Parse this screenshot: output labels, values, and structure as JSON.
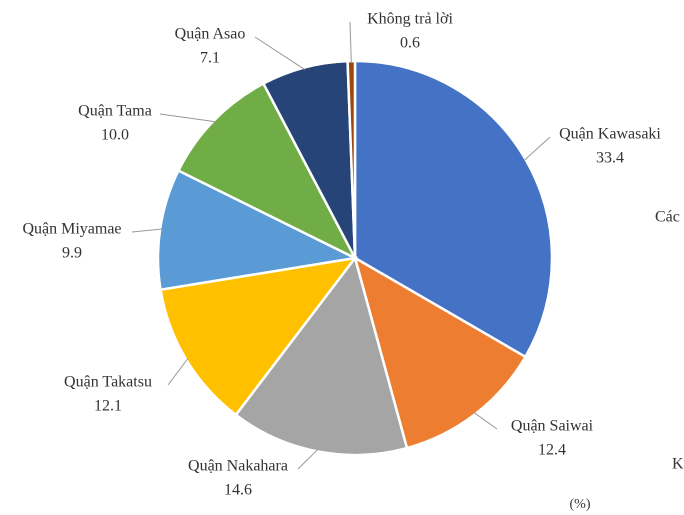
{
  "chart_data": {
    "type": "pie",
    "categories": [
      "Quận Kawasaki",
      "Quận Saiwai",
      "Quận Nakahara",
      "Quận Takatsu",
      "Quận Miyamae",
      "Quận Tama",
      "Quận Asao",
      "Không trả lời"
    ],
    "values": [
      33.4,
      12.4,
      14.6,
      12.1,
      9.9,
      10.0,
      7.1,
      0.6
    ],
    "value_labels": [
      "33.4",
      "12.4",
      "14.6",
      "12.1",
      "9.9",
      "10.0",
      "7.1",
      "0.6"
    ],
    "colors": [
      "#4472c4",
      "#ed7d31",
      "#a5a5a5",
      "#ffc000",
      "#5b9bd5",
      "#70ad47",
      "#264478",
      "#9e480e"
    ],
    "unit_label": "(%)",
    "side_texts": [
      "Các",
      "K"
    ]
  }
}
